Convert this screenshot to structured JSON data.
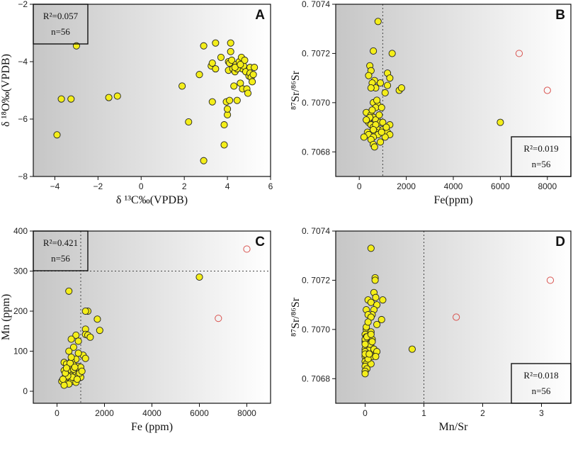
{
  "chart_data": [
    {
      "panel": "A",
      "type": "scatter",
      "xlabel": "δ ¹³C‰(VPDB)",
      "ylabel": "δ ¹⁸O‰(VPDB)",
      "xlim": [
        -5,
        6
      ],
      "ylim": [
        -8,
        -2
      ],
      "xticks": [
        -4,
        -2,
        0,
        2,
        4,
        6
      ],
      "yticks": [
        -8,
        -6,
        -4,
        -2
      ],
      "tick_labels": {
        "x": [
          "−4",
          "−2",
          "0",
          "2",
          "4",
          "6"
        ],
        "y": [
          "−8",
          "−6",
          "−4",
          "−2"
        ]
      },
      "stats": [
        "R²=0.057",
        "n=56"
      ],
      "stats_position": "top-left",
      "shade": "left",
      "series": [
        {
          "name": "samples",
          "style": "filled",
          "points": [
            [
              -3.9,
              -6.55
            ],
            [
              -3.7,
              -5.3
            ],
            [
              -3.25,
              -5.3
            ],
            [
              -3.0,
              -3.45
            ],
            [
              -1.5,
              -5.25
            ],
            [
              -1.1,
              -5.2
            ],
            [
              1.9,
              -4.85
            ],
            [
              2.2,
              -6.1
            ],
            [
              2.7,
              -4.45
            ],
            [
              2.9,
              -3.45
            ],
            [
              2.9,
              -7.45
            ],
            [
              3.25,
              -4.15
            ],
            [
              3.3,
              -4.05
            ],
            [
              3.3,
              -5.4
            ],
            [
              3.45,
              -3.35
            ],
            [
              3.45,
              -4.25
            ],
            [
              3.7,
              -3.85
            ],
            [
              3.85,
              -6.2
            ],
            [
              3.85,
              -6.9
            ],
            [
              3.95,
              -5.4
            ],
            [
              4.0,
              -5.85
            ],
            [
              4.0,
              -5.65
            ],
            [
              4.05,
              -4.0
            ],
            [
              4.05,
              -4.3
            ],
            [
              4.1,
              -4.05
            ],
            [
              4.15,
              -3.35
            ],
            [
              4.15,
              -3.65
            ],
            [
              4.2,
              -3.95
            ],
            [
              4.25,
              -4.25
            ],
            [
              4.3,
              -4.85
            ],
            [
              4.35,
              -4.35
            ],
            [
              4.4,
              -4.1
            ],
            [
              4.45,
              -5.35
            ],
            [
              4.5,
              -4.2
            ],
            [
              4.55,
              -4.0
            ],
            [
              4.6,
              -4.2
            ],
            [
              4.6,
              -4.75
            ],
            [
              4.65,
              -3.85
            ],
            [
              4.7,
              -4.25
            ],
            [
              4.7,
              -4.95
            ],
            [
              4.75,
              -4.15
            ],
            [
              4.8,
              -3.95
            ],
            [
              4.85,
              -4.35
            ],
            [
              4.9,
              -4.95
            ],
            [
              4.95,
              -5.1
            ],
            [
              5.0,
              -4.5
            ],
            [
              5.05,
              -4.2
            ],
            [
              5.05,
              -4.4
            ],
            [
              5.1,
              -4.55
            ],
            [
              5.15,
              -4.7
            ],
            [
              5.2,
              -4.45
            ],
            [
              5.25,
              -4.2
            ],
            [
              4.1,
              -5.35
            ],
            [
              4.45,
              -4.25
            ],
            [
              4.35,
              -4.2
            ],
            [
              4.6,
              -4.1
            ]
          ]
        }
      ]
    },
    {
      "panel": "B",
      "type": "scatter",
      "xlabel": "Fe(ppm)",
      "ylabel": "⁸⁷Sr/⁸⁶Sr",
      "xlim": [
        -1000,
        9000
      ],
      "ylim": [
        0.7067,
        0.7074
      ],
      "xticks": [
        0,
        2000,
        4000,
        6000,
        8000
      ],
      "yticks": [
        0.7068,
        0.707,
        0.7072,
        0.7074
      ],
      "tick_labels": {
        "x": [
          "0",
          "2000",
          "4000",
          "6000",
          "8000"
        ],
        "y": [
          "0. 7068",
          "0. 7070",
          "0. 7072",
          "0. 7074"
        ]
      },
      "vline": 1000,
      "stats": [
        "R²=0.019",
        "n=56"
      ],
      "stats_position": "bottom-right",
      "shade": "left",
      "series": [
        {
          "name": "samples",
          "style": "filled",
          "points": [
            [
              800,
              0.70733
            ],
            [
              600,
              0.70721
            ],
            [
              1400,
              0.7072
            ],
            [
              450,
              0.70715
            ],
            [
              500,
              0.70713
            ],
            [
              1200,
              0.70712
            ],
            [
              1300,
              0.7071
            ],
            [
              400,
              0.70711
            ],
            [
              650,
              0.70709
            ],
            [
              550,
              0.70708
            ],
            [
              900,
              0.70708
            ],
            [
              1200,
              0.70707
            ],
            [
              700,
              0.70706
            ],
            [
              500,
              0.70706
            ],
            [
              1700,
              0.70705
            ],
            [
              1800,
              0.70706
            ],
            [
              1100,
              0.70704
            ],
            [
              600,
              0.707
            ],
            [
              800,
              0.70699
            ],
            [
              700,
              0.70698
            ],
            [
              950,
              0.70698
            ],
            [
              300,
              0.70696
            ],
            [
              500,
              0.70695
            ],
            [
              600,
              0.70694
            ],
            [
              700,
              0.70693
            ],
            [
              400,
              0.70692
            ],
            [
              900,
              0.70692
            ],
            [
              1000,
              0.70692
            ],
            [
              500,
              0.70691
            ],
            [
              600,
              0.7069
            ],
            [
              1300,
              0.70691
            ],
            [
              800,
              0.70689
            ],
            [
              1000,
              0.70689
            ],
            [
              350,
              0.70688
            ],
            [
              700,
              0.70688
            ],
            [
              400,
              0.70687
            ],
            [
              1200,
              0.70688
            ],
            [
              1300,
              0.70687
            ],
            [
              800,
              0.70687
            ],
            [
              200,
              0.70686
            ],
            [
              600,
              0.70686
            ],
            [
              1100,
              0.70686
            ],
            [
              500,
              0.70685
            ],
            [
              900,
              0.70684
            ],
            [
              600,
              0.70683
            ],
            [
              650,
              0.70682
            ],
            [
              6000,
              0.70692
            ],
            [
              550,
              0.70697
            ],
            [
              750,
              0.70701
            ],
            [
              450,
              0.70694
            ],
            [
              850,
              0.70695
            ],
            [
              700,
              0.70691
            ],
            [
              950,
              0.70688
            ],
            [
              1150,
              0.7069
            ],
            [
              300,
              0.70693
            ],
            [
              600,
              0.70689
            ]
          ]
        },
        {
          "name": "outliers",
          "style": "open",
          "points": [
            [
              6800,
              0.7072
            ],
            [
              8000,
              0.70705
            ]
          ]
        }
      ]
    },
    {
      "panel": "C",
      "type": "scatter",
      "xlabel": "Fe (ppm)",
      "ylabel": "Mn (ppm)",
      "xlim": [
        -1000,
        9000
      ],
      "ylim": [
        -30,
        400
      ],
      "xticks": [
        0,
        2000,
        4000,
        6000,
        8000
      ],
      "yticks": [
        0,
        100,
        200,
        300,
        400
      ],
      "tick_labels": {
        "x": [
          "0",
          "2000",
          "4000",
          "6000",
          "8000"
        ],
        "y": [
          "0",
          "100",
          "200",
          "300",
          "400"
        ]
      },
      "vline": 1000,
      "hline": 300,
      "stats": [
        "R²=0.421",
        "n=56"
      ],
      "stats_position": "top-left",
      "shade": "left",
      "series": [
        {
          "name": "samples",
          "style": "filled",
          "points": [
            [
              500,
              250
            ],
            [
              6000,
              285
            ],
            [
              1300,
              200
            ],
            [
              1200,
              200
            ],
            [
              1700,
              180
            ],
            [
              1200,
              155
            ],
            [
              1800,
              152
            ],
            [
              1200,
              142
            ],
            [
              1300,
              140
            ],
            [
              1400,
              135
            ],
            [
              800,
              140
            ],
            [
              600,
              130
            ],
            [
              900,
              125
            ],
            [
              700,
              110
            ],
            [
              500,
              100
            ],
            [
              1100,
              90
            ],
            [
              1200,
              82
            ],
            [
              800,
              80
            ],
            [
              600,
              75
            ],
            [
              300,
              72
            ],
            [
              400,
              68
            ],
            [
              700,
              65
            ],
            [
              900,
              62
            ],
            [
              500,
              60
            ],
            [
              1000,
              60
            ],
            [
              600,
              55
            ],
            [
              300,
              52
            ],
            [
              800,
              50
            ],
            [
              500,
              48
            ],
            [
              700,
              45
            ],
            [
              400,
              42
            ],
            [
              900,
              40
            ],
            [
              600,
              38
            ],
            [
              1000,
              35
            ],
            [
              300,
              32
            ],
            [
              500,
              30
            ],
            [
              700,
              28
            ],
            [
              200,
              25
            ],
            [
              600,
              24
            ],
            [
              400,
              20
            ],
            [
              800,
              22
            ],
            [
              500,
              18
            ],
            [
              300,
              15
            ],
            [
              700,
              55
            ],
            [
              950,
              45
            ],
            [
              550,
              70
            ],
            [
              650,
              35
            ],
            [
              850,
              30
            ],
            [
              450,
              38
            ],
            [
              750,
              60
            ],
            [
              350,
              45
            ],
            [
              1050,
              50
            ],
            [
              250,
              30
            ],
            [
              600,
              85
            ],
            [
              900,
              95
            ],
            [
              400,
              58
            ]
          ]
        },
        {
          "name": "outliers",
          "style": "open",
          "points": [
            [
              8000,
              355
            ],
            [
              6800,
              182
            ]
          ]
        }
      ]
    },
    {
      "panel": "D",
      "type": "scatter",
      "xlabel": "Mn/Sr",
      "ylabel": "⁸⁷Sr/⁸⁶Sr",
      "xlim": [
        -0.5,
        3.5
      ],
      "ylim": [
        0.7067,
        0.7074
      ],
      "xticks": [
        0,
        1,
        2,
        3
      ],
      "yticks": [
        0.7068,
        0.707,
        0.7072,
        0.7074
      ],
      "tick_labels": {
        "x": [
          "0",
          "1",
          "2",
          "3"
        ],
        "y": [
          "0. 7068",
          "0. 7070",
          "0. 7072",
          "0. 7074"
        ]
      },
      "vline": 1,
      "stats": [
        "R²=0.018",
        "n=56"
      ],
      "stats_position": "bottom-right",
      "shade": "left",
      "series": [
        {
          "name": "samples",
          "style": "filled",
          "points": [
            [
              0.1,
              0.70733
            ],
            [
              0.17,
              0.70721
            ],
            [
              0.17,
              0.7072
            ],
            [
              0.15,
              0.70715
            ],
            [
              0.18,
              0.70713
            ],
            [
              0.05,
              0.70712
            ],
            [
              0.3,
              0.70712
            ],
            [
              0.1,
              0.70711
            ],
            [
              0.2,
              0.7071
            ],
            [
              0.02,
              0.70708
            ],
            [
              0.15,
              0.70708
            ],
            [
              0.12,
              0.70706
            ],
            [
              0.05,
              0.70706
            ],
            [
              0.1,
              0.70705
            ],
            [
              0.28,
              0.70704
            ],
            [
              0.2,
              0.70702
            ],
            [
              0.02,
              0.707
            ],
            [
              0.0,
              0.70698
            ],
            [
              0.02,
              0.70697
            ],
            [
              0.12,
              0.70696
            ],
            [
              0.0,
              0.70695
            ],
            [
              0.05,
              0.70694
            ],
            [
              0.03,
              0.70693
            ],
            [
              0.1,
              0.70693
            ],
            [
              0.0,
              0.70692
            ],
            [
              0.08,
              0.70692
            ],
            [
              0.0,
              0.70691
            ],
            [
              0.05,
              0.7069
            ],
            [
              0.15,
              0.70691
            ],
            [
              0.0,
              0.70689
            ],
            [
              0.03,
              0.70688
            ],
            [
              0.12,
              0.70689
            ],
            [
              0.0,
              0.70687
            ],
            [
              0.05,
              0.70687
            ],
            [
              0.02,
              0.70686
            ],
            [
              0.1,
              0.70686
            ],
            [
              0.0,
              0.70685
            ],
            [
              0.03,
              0.70684
            ],
            [
              0.0,
              0.70683
            ],
            [
              0.0,
              0.70682
            ],
            [
              0.05,
              0.70688
            ],
            [
              0.0,
              0.7069
            ],
            [
              0.08,
              0.70694
            ],
            [
              0.15,
              0.70692
            ],
            [
              0.02,
              0.70701
            ],
            [
              0.1,
              0.70699
            ],
            [
              0.0,
              0.70696
            ],
            [
              0.2,
              0.70691
            ],
            [
              0.05,
              0.70703
            ],
            [
              0.12,
              0.70695
            ],
            [
              0.03,
              0.70697
            ],
            [
              0.18,
              0.70689
            ],
            [
              0.0,
              0.70694
            ],
            [
              0.07,
              0.7069
            ],
            [
              0.8,
              0.70692
            ],
            [
              0.1,
              0.70698
            ]
          ]
        },
        {
          "name": "outliers",
          "style": "open",
          "points": [
            [
              1.55,
              0.70705
            ],
            [
              3.15,
              0.7072
            ]
          ]
        }
      ]
    }
  ],
  "colors": {
    "point_fill": "#f4ee1a",
    "point_stroke": "#222222",
    "outlier_stroke": "#d9534f",
    "shade_dark": "#c9c9c9",
    "shade_light": "#ffffff",
    "axis": "#111111"
  }
}
